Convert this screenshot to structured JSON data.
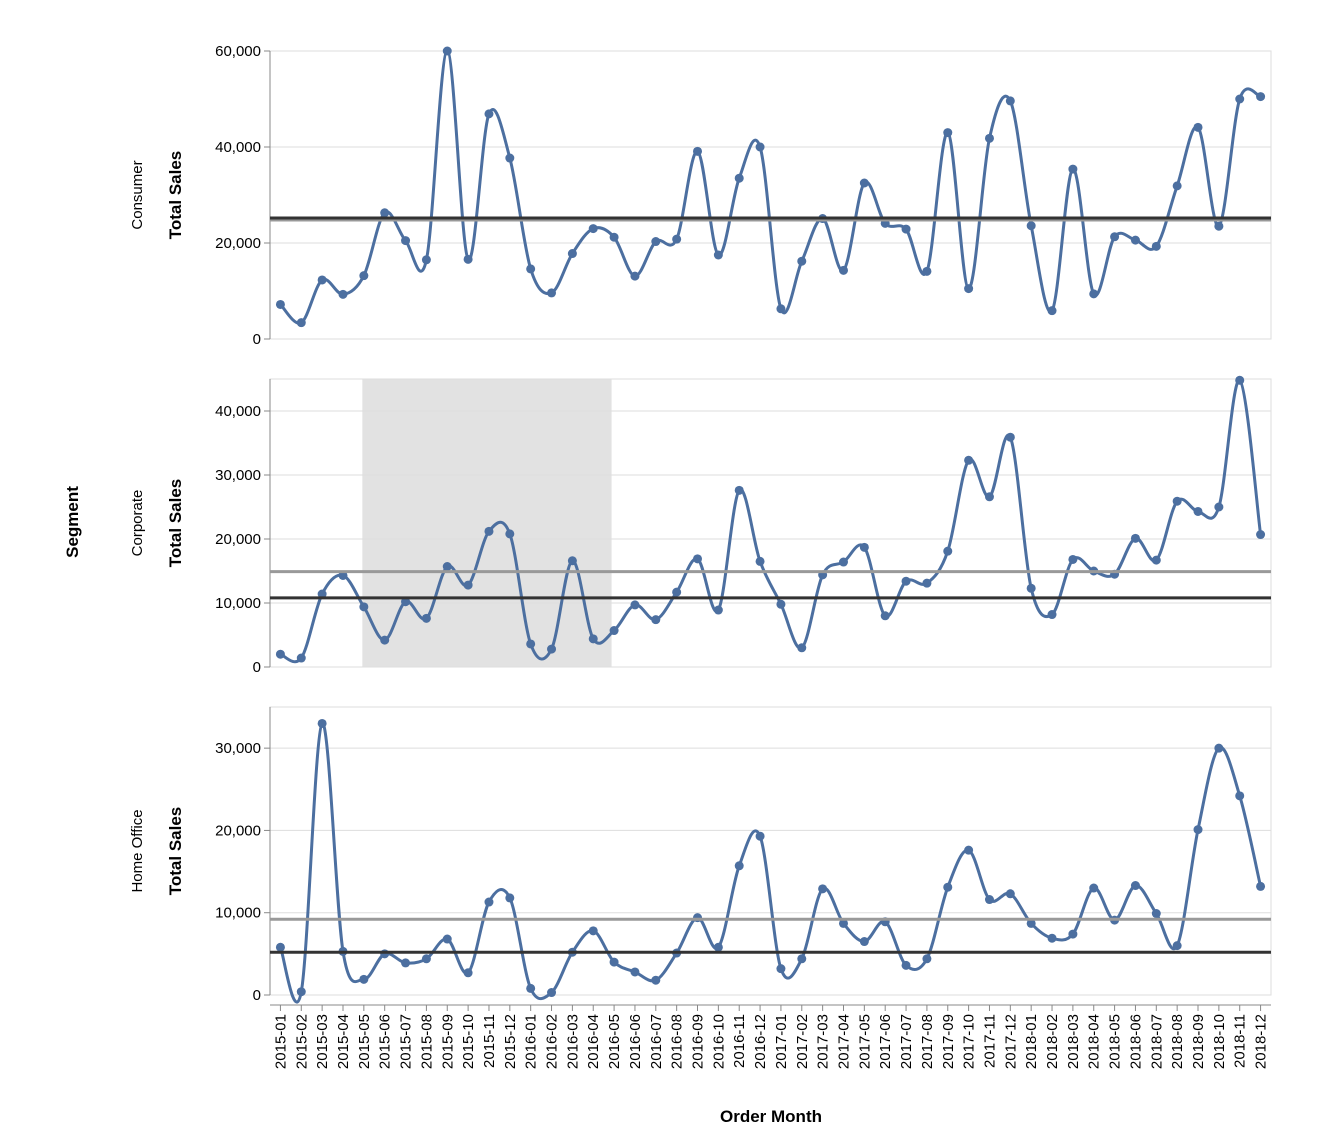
{
  "chart_data": {
    "type": "line",
    "interpolation": "smooth",
    "facet_field": "Segment",
    "xlabel": "Order Month",
    "ylabel": "Total Sales",
    "categories": [
      "2015-01",
      "2015-02",
      "2015-03",
      "2015-04",
      "2015-05",
      "2015-06",
      "2015-07",
      "2015-08",
      "2015-09",
      "2015-10",
      "2015-11",
      "2015-12",
      "2016-01",
      "2016-02",
      "2016-03",
      "2016-04",
      "2016-05",
      "2016-06",
      "2016-07",
      "2016-08",
      "2016-09",
      "2016-10",
      "2016-11",
      "2016-12",
      "2017-01",
      "2017-02",
      "2017-03",
      "2017-04",
      "2017-05",
      "2017-06",
      "2017-07",
      "2017-08",
      "2017-09",
      "2017-10",
      "2017-11",
      "2017-12",
      "2018-01",
      "2018-02",
      "2018-03",
      "2018-04",
      "2018-05",
      "2018-06",
      "2018-07",
      "2018-08",
      "2018-09",
      "2018-10",
      "2018-11",
      "2018-12"
    ],
    "grid": true,
    "colors": {
      "line": "#4c6fa0",
      "overall_mean_rule": "#999999",
      "selection_mean_rule": "#333333",
      "brush": "#e2e2e2",
      "grid": "#dddddd"
    },
    "selection": {
      "from": "2015-05",
      "to": "2016-05"
    },
    "panels": [
      {
        "segment": "Consumer",
        "ylim": [
          0,
          60000
        ],
        "yticks": [
          0,
          20000,
          40000,
          60000
        ],
        "overall_mean": 24800,
        "selection_mean": 25200,
        "values": [
          7200,
          3400,
          12300,
          9300,
          13200,
          26300,
          20500,
          16500,
          60000,
          16600,
          46900,
          37700,
          14600,
          9600,
          17800,
          23000,
          21200,
          13100,
          20300,
          20800,
          39100,
          17500,
          33500,
          40000,
          6300,
          16200,
          25100,
          14300,
          32500,
          24100,
          22900,
          14100,
          43000,
          10500,
          41800,
          49600,
          23600,
          5900,
          35400,
          9400,
          21300,
          20600,
          19300,
          31900,
          44100,
          23500,
          50000,
          50500
        ]
      },
      {
        "segment": "Corporate",
        "ylim": [
          0,
          45000
        ],
        "yticks": [
          0,
          10000,
          20000,
          30000,
          40000
        ],
        "overall_mean": 14900,
        "selection_mean": 10800,
        "values": [
          2000,
          1400,
          11400,
          14300,
          9400,
          4200,
          10200,
          7600,
          15700,
          12800,
          21200,
          20800,
          3600,
          2800,
          16600,
          4400,
          5700,
          9700,
          7400,
          11700,
          16900,
          8900,
          27600,
          16500,
          9800,
          3000,
          14400,
          16400,
          18700,
          8000,
          13400,
          13100,
          18100,
          32300,
          26600,
          35900,
          12300,
          8200,
          16800,
          15000,
          14500,
          20100,
          16700,
          25900,
          24300,
          25000,
          44800,
          20700
        ]
      },
      {
        "segment": "Home Office",
        "ylim": [
          0,
          35000
        ],
        "yticks": [
          0,
          10000,
          20000,
          30000
        ],
        "overall_mean": 9200,
        "selection_mean": 5200,
        "values": [
          5800,
          400,
          33000,
          5300,
          1900,
          5000,
          3900,
          4400,
          6800,
          2700,
          11300,
          11800,
          800,
          300,
          5200,
          7800,
          4000,
          2800,
          1800,
          5100,
          9400,
          5800,
          15700,
          19300,
          3200,
          4400,
          12900,
          8700,
          6500,
          8900,
          3600,
          4400,
          13100,
          17600,
          11600,
          12300,
          8700,
          6900,
          7400,
          13000,
          9100,
          13300,
          9900,
          6000,
          20100,
          30000,
          24200,
          13200
        ]
      }
    ]
  }
}
